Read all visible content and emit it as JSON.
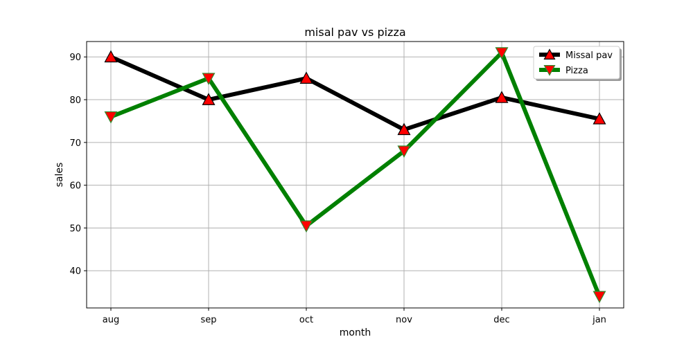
{
  "chart_data": {
    "type": "line",
    "title": "misal pav vs pizza",
    "xlabel": "month",
    "ylabel": "sales",
    "categories": [
      "aug",
      "sep",
      "oct",
      "nov",
      "dec",
      "jan"
    ],
    "ylim": [
      31.3,
      93.6
    ],
    "yticks": [
      40,
      50,
      60,
      70,
      80,
      90
    ],
    "grid": true,
    "legend_position": "top-right",
    "series": [
      {
        "name": "Missal pav",
        "values": [
          90,
          80,
          85,
          73,
          80.5,
          75.5
        ],
        "line_color": "#000000",
        "marker": "triangle-up",
        "marker_color": "#ff0000"
      },
      {
        "name": "Pizza",
        "values": [
          76,
          85,
          50.5,
          68,
          91,
          34
        ],
        "line_color": "#008000",
        "marker": "triangle-down",
        "marker_color": "#ff0000"
      }
    ]
  }
}
